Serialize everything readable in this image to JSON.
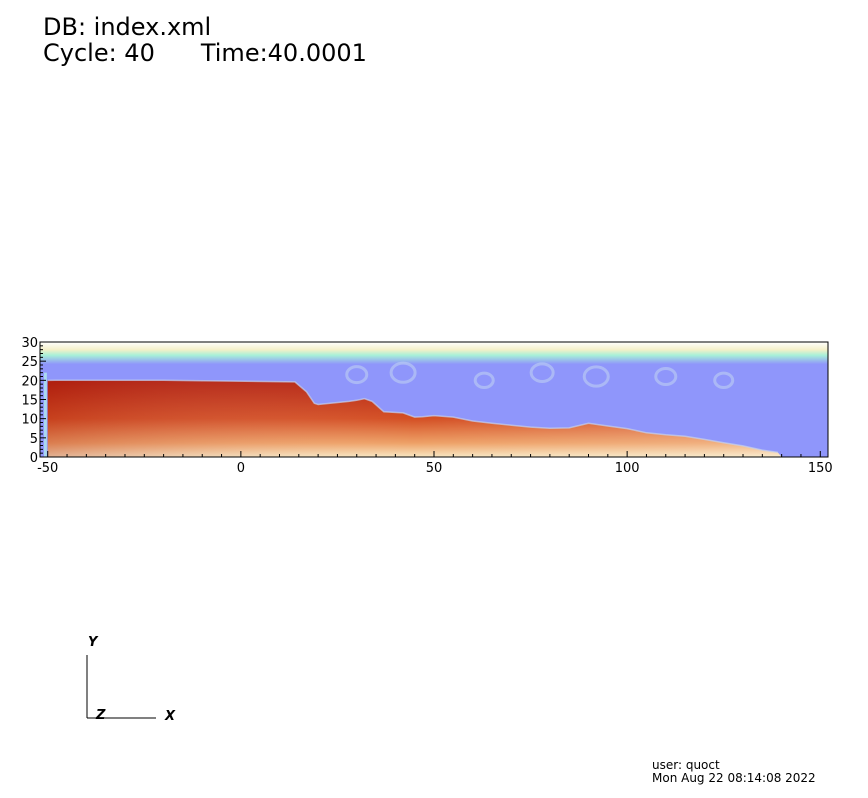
{
  "header": {
    "db_label": "DB: index.xml",
    "cycle_label": "Cycle: 40",
    "time_label": "Time:40.0001"
  },
  "chart_data": {
    "type": "heatmap",
    "title": "",
    "xlabel": "",
    "ylabel": "",
    "xlim": [
      -52,
      152
    ],
    "ylim": [
      0,
      30
    ],
    "x_ticks": [
      -50,
      0,
      50,
      100,
      150
    ],
    "y_ticks": [
      0,
      5,
      10,
      15,
      20,
      25,
      30
    ],
    "grid": false,
    "legend": "none",
    "colors": {
      "fluid": "#8f96fb",
      "interface_band": "#9ef2d2",
      "solid_dark": "#b21c10",
      "solid_mid": "#e46a2e",
      "solid_light": "#f7e4bf"
    },
    "surface_profile": {
      "x": [
        -50,
        -48,
        -46,
        -20,
        14,
        17,
        19,
        20,
        28,
        30,
        32,
        34,
        37,
        42,
        45,
        47,
        50,
        55,
        60,
        65,
        70,
        75,
        80,
        85,
        90,
        95,
        100,
        105,
        110,
        115,
        120,
        125,
        130,
        135,
        139,
        140
      ],
      "y": [
        20,
        20,
        20,
        20,
        19.6,
        17,
        14,
        13.7,
        14.5,
        14.8,
        15.2,
        14.5,
        11.8,
        11.5,
        10.4,
        10.5,
        10.8,
        10.4,
        9.4,
        8.8,
        8.3,
        7.8,
        7.5,
        7.6,
        8.8,
        8.1,
        7.4,
        6.3,
        5.8,
        5.4,
        4.6,
        3.7,
        2.9,
        1.8,
        1.2,
        0
      ]
    },
    "fluid_top": 25
  },
  "triad": {
    "x_label": "X",
    "y_label": "Y",
    "z_label": "Z"
  },
  "footer": {
    "user_label": "user: quoct",
    "date_label": "Mon Aug 22 08:14:08 2022"
  }
}
